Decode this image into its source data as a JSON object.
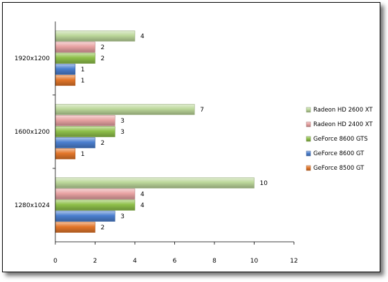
{
  "chart_data": {
    "type": "bar",
    "orientation": "horizontal",
    "categories": [
      "1920x1200",
      "1600x1200",
      "1280x1024"
    ],
    "series": [
      {
        "name": "Radeon HD 2600 XT",
        "values": [
          4,
          7,
          10
        ],
        "color": "#bcd79a"
      },
      {
        "name": "Radeon HD 2400 XT",
        "values": [
          2,
          3,
          4
        ],
        "color": "#e8a2a2"
      },
      {
        "name": "GeForce 8600 GTS",
        "values": [
          2,
          3,
          4
        ],
        "color": "#8fc04a"
      },
      {
        "name": "GeForce 8600 GT",
        "values": [
          1,
          2,
          3
        ],
        "color": "#4b7fcf"
      },
      {
        "name": "GeForce 8500 GT",
        "values": [
          1,
          1,
          2
        ],
        "color": "#e3762a"
      }
    ],
    "xlim": [
      0,
      12
    ],
    "xticks": [
      "0",
      "2",
      "4",
      "6",
      "8",
      "10",
      "12"
    ],
    "data_labels": true,
    "legend_position": "right",
    "grid": false,
    "title": "",
    "xlabel": "",
    "ylabel": ""
  }
}
